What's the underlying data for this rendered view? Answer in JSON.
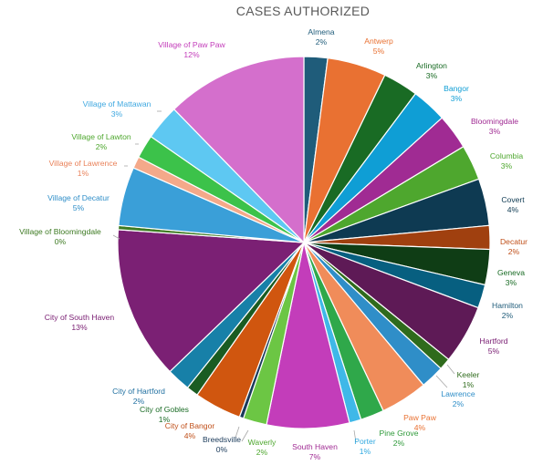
{
  "chart_data": {
    "type": "pie",
    "title": "CASES AUTHORIZED",
    "slices": [
      {
        "name": "Almena",
        "value": 2,
        "label": "2%",
        "color": "#1f5c7a"
      },
      {
        "name": "Antwerp",
        "value": 5,
        "label": "5%",
        "color": "#e97132"
      },
      {
        "name": "Arlington",
        "value": 3,
        "label": "3%",
        "color": "#196b24"
      },
      {
        "name": "Bangor",
        "value": 3,
        "label": "3%",
        "color": "#0f9ed5"
      },
      {
        "name": "Bloomingdale",
        "value": 3,
        "label": "3%",
        "color": "#a02b93"
      },
      {
        "name": "Columbia",
        "value": 3,
        "label": "3%",
        "color": "#4ea72e"
      },
      {
        "name": "Covert",
        "value": 4,
        "label": "4%",
        "color": "#0e3a52"
      },
      {
        "name": "Decatur",
        "value": 2,
        "label": "2%",
        "color": "#a0400f"
      },
      {
        "name": "Geneva",
        "value": 3,
        "label": "3%",
        "color": "#0f3d15"
      },
      {
        "name": "Hamilton",
        "value": 2,
        "label": "2%",
        "color": "#075f80"
      },
      {
        "name": "Hartford",
        "value": 5,
        "label": "5%",
        "color": "#5e1a56"
      },
      {
        "name": "Keeler",
        "value": 1,
        "label": "1%",
        "color": "#2f6b1c"
      },
      {
        "name": "Lawrence",
        "value": 2,
        "label": "2%",
        "color": "#2f8ec8"
      },
      {
        "name": "Paw Paw",
        "value": 4,
        "label": "4%",
        "color": "#f08c5a"
      },
      {
        "name": "Pine Grove",
        "value": 2,
        "label": "2%",
        "color": "#2fa84a"
      },
      {
        "name": "Porter",
        "value": 1,
        "label": "1%",
        "color": "#3fb8e8"
      },
      {
        "name": "South Haven",
        "value": 7,
        "label": "7%",
        "color": "#c33dba"
      },
      {
        "name": "Waverly",
        "value": 2,
        "label": "2%",
        "color": "#6cc644"
      },
      {
        "name": "Breedsville",
        "value": 0,
        "label": "0%",
        "color": "#1a3a5a"
      },
      {
        "name": "City of Bangor",
        "value": 4,
        "label": "4%",
        "color": "#d0560f"
      },
      {
        "name": "City of Gobles",
        "value": 1,
        "label": "1%",
        "color": "#1a5c22"
      },
      {
        "name": "City of Hartford",
        "value": 2,
        "label": "2%",
        "color": "#1780a8"
      },
      {
        "name": "City of South Haven",
        "value": 13,
        "label": "13%",
        "color": "#7b2074"
      },
      {
        "name": "Village of Bloomingdale",
        "value": 0,
        "label": "0%",
        "color": "#3d7a22"
      },
      {
        "name": "Village of Decatur",
        "value": 5,
        "label": "5%",
        "color": "#3a9fd8"
      },
      {
        "name": "Village of Lawrence",
        "value": 1,
        "label": "1%",
        "color": "#f4a98a"
      },
      {
        "name": "Village of Lawton",
        "value": 2,
        "label": "2%",
        "color": "#3cc24a"
      },
      {
        "name": "Village of Mattawan",
        "value": 3,
        "label": "3%",
        "color": "#5ec8f2"
      },
      {
        "name": "Village of Paw Paw",
        "value": 12,
        "label": "12%",
        "color": "#d46fcc"
      }
    ],
    "label_colors": {
      "Almena": "#1f5c7a",
      "Antwerp": "#e97132",
      "Arlington": "#196b24",
      "Bangor": "#0f9ed5",
      "Bloomingdale": "#a02b93",
      "Columbia": "#4ea72e",
      "Covert": "#0e3a52",
      "Decatur": "#c0501a",
      "Geneva": "#196b24",
      "Hamilton": "#1f5c7a",
      "Hartford": "#7b2074",
      "Keeler": "#2f6b1c",
      "Lawrence": "#2f8ec8",
      "Paw Paw": "#e97132",
      "Pine Grove": "#2f9a3a",
      "Porter": "#2fa8e0",
      "South Haven": "#a02b93",
      "Waverly": "#4ea72e",
      "Breedsville": "#1a3a5a",
      "City of Bangor": "#c0501a",
      "City of Gobles": "#196b24",
      "City of Hartford": "#1f6fa0",
      "City of South Haven": "#7b2074",
      "Village of Bloomingdale": "#3d7a22",
      "Village of Decatur": "#2f8ec8",
      "Village of Lawrence": "#e9825a",
      "Village of Lawton": "#4ea72e",
      "Village of Mattawan": "#3fa8e0",
      "Village of Paw Paw": "#c33dba"
    }
  }
}
